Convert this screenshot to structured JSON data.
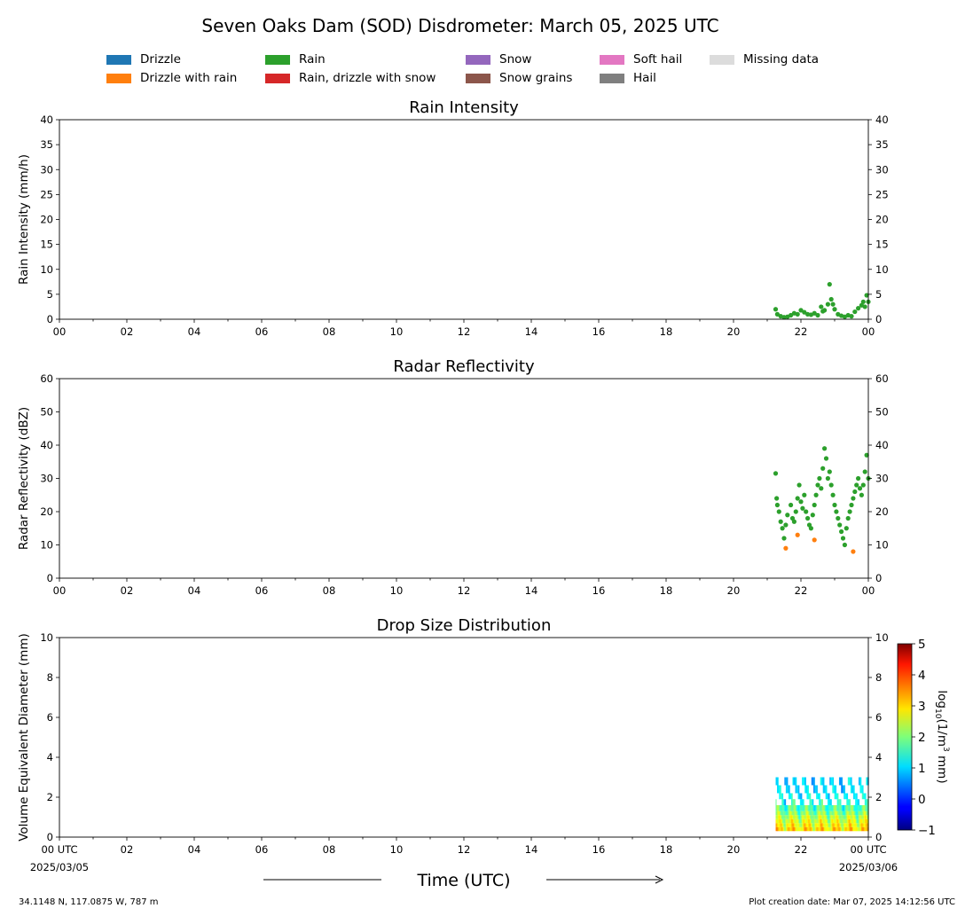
{
  "figure": {
    "title": "Seven Oaks Dam (SOD) Disdrometer: March 05, 2025 UTC",
    "xlabel": "Time (UTC)",
    "location": "34.1148 N, 117.0875 W, 787 m",
    "creation": "Plot creation date: Mar 07, 2025 14:12:56 UTC"
  },
  "legend": [
    {
      "label": "Drizzle",
      "color": "#1f77b4"
    },
    {
      "label": "Drizzle with rain",
      "color": "#ff7f0e"
    },
    {
      "label": "Rain",
      "color": "#2ca02c"
    },
    {
      "label": "Rain, drizzle with snow",
      "color": "#d62728"
    },
    {
      "label": "Snow",
      "color": "#9467bd"
    },
    {
      "label": "Snow grains",
      "color": "#8c564b"
    },
    {
      "label": "Soft hail",
      "color": "#e377c2"
    },
    {
      "label": "Hail",
      "color": "#7f7f7f"
    },
    {
      "label": "Missing data",
      "color": "#dcdcdc"
    }
  ],
  "colorbar": {
    "label": "log10(1/m³ mm)",
    "ticks": [
      "−1",
      "0",
      "1",
      "2",
      "3",
      "4",
      "5"
    ],
    "range": [
      -1,
      5
    ],
    "colormap": "jet"
  },
  "x_ticks": [
    "00",
    "02",
    "04",
    "06",
    "08",
    "10",
    "12",
    "14",
    "16",
    "18",
    "20",
    "22",
    "00"
  ],
  "x_ticks_bottom": [
    "00 UTC",
    "02",
    "04",
    "06",
    "08",
    "10",
    "12",
    "14",
    "16",
    "18",
    "20",
    "22",
    "00 UTC"
  ],
  "x_dates": [
    "2025/03/05",
    "2025/03/06"
  ],
  "chart_data": [
    {
      "type": "scatter",
      "title": "Rain Intensity",
      "ylabel": "Rain Intensity (mm/h)",
      "xlim": [
        0,
        24
      ],
      "ylim": [
        0,
        40
      ],
      "yticks": [
        0,
        5,
        10,
        15,
        20,
        25,
        30,
        35,
        40
      ],
      "series": [
        {
          "name": "Rain",
          "color": "#2ca02c",
          "x": [
            21.25,
            21.3,
            21.4,
            21.5,
            21.6,
            21.7,
            21.8,
            21.9,
            22.0,
            22.1,
            22.2,
            22.3,
            22.4,
            22.5,
            22.6,
            22.65,
            22.7,
            22.8,
            22.85,
            22.9,
            22.95,
            23.0,
            23.1,
            23.2,
            23.3,
            23.4,
            23.5,
            23.6,
            23.7,
            23.8,
            23.85,
            23.9,
            23.95,
            24.0
          ],
          "y": [
            2.0,
            1.0,
            0.6,
            0.4,
            0.5,
            0.8,
            1.2,
            1.0,
            1.8,
            1.4,
            1.0,
            0.9,
            1.2,
            0.8,
            2.5,
            1.6,
            1.8,
            3.0,
            7.0,
            4.0,
            3.0,
            2.0,
            1.0,
            0.7,
            0.5,
            0.8,
            0.6,
            1.5,
            2.2,
            2.8,
            3.5,
            2.5,
            4.8,
            3.5
          ]
        }
      ]
    },
    {
      "type": "scatter",
      "title": "Radar Reflectivity",
      "ylabel": "Radar Reflectivity (dBZ)",
      "xlim": [
        0,
        24
      ],
      "ylim": [
        0,
        60
      ],
      "yticks": [
        0,
        10,
        20,
        30,
        40,
        50,
        60
      ],
      "series": [
        {
          "name": "Rain",
          "color": "#2ca02c",
          "x": [
            21.25,
            21.28,
            21.3,
            21.35,
            21.4,
            21.45,
            21.5,
            21.55,
            21.6,
            21.7,
            21.75,
            21.8,
            21.85,
            21.9,
            21.95,
            22.0,
            22.05,
            22.1,
            22.15,
            22.2,
            22.25,
            22.3,
            22.35,
            22.4,
            22.45,
            22.5,
            22.55,
            22.6,
            22.65,
            22.7,
            22.75,
            22.8,
            22.85,
            22.9,
            22.95,
            23.0,
            23.05,
            23.1,
            23.15,
            23.2,
            23.25,
            23.3,
            23.35,
            23.4,
            23.45,
            23.5,
            23.55,
            23.6,
            23.65,
            23.7,
            23.75,
            23.8,
            23.85,
            23.9,
            23.95,
            24.0
          ],
          "y": [
            31.5,
            24,
            22,
            20,
            17,
            15,
            12,
            16,
            19,
            22,
            18,
            17,
            20,
            24,
            28,
            23,
            21,
            25,
            20,
            18,
            16,
            15,
            19,
            22,
            25,
            28,
            30,
            27,
            33,
            39,
            36,
            30,
            32,
            28,
            25,
            22,
            20,
            18,
            16,
            14,
            12,
            10,
            15,
            18,
            20,
            22,
            24,
            26,
            28,
            30,
            27,
            25,
            28,
            32,
            37,
            30
          ]
        },
        {
          "name": "Drizzle with rain",
          "color": "#ff7f0e",
          "x": [
            21.55,
            21.9,
            22.4,
            23.55
          ],
          "y": [
            9,
            13,
            11.5,
            8
          ]
        }
      ]
    },
    {
      "type": "heatmap",
      "title": "Drop Size Distribution",
      "ylabel": "Volume Equivalent Diameter (mm)",
      "xlim": [
        0,
        24
      ],
      "ylim": [
        0,
        10
      ],
      "yticks": [
        0,
        2,
        4,
        6,
        8,
        10
      ],
      "x_start": 21.25,
      "x_end": 24.0,
      "diameter_bins": [
        0.3,
        0.5,
        0.7,
        0.9,
        1.1,
        1.3,
        1.6,
        1.9,
        2.2,
        2.6,
        3.0
      ],
      "log_concentration": [
        2.8,
        2.6,
        2.4,
        2.2,
        1.9,
        1.6,
        1.3,
        1.1,
        0.9,
        0.8,
        0.7
      ]
    }
  ]
}
